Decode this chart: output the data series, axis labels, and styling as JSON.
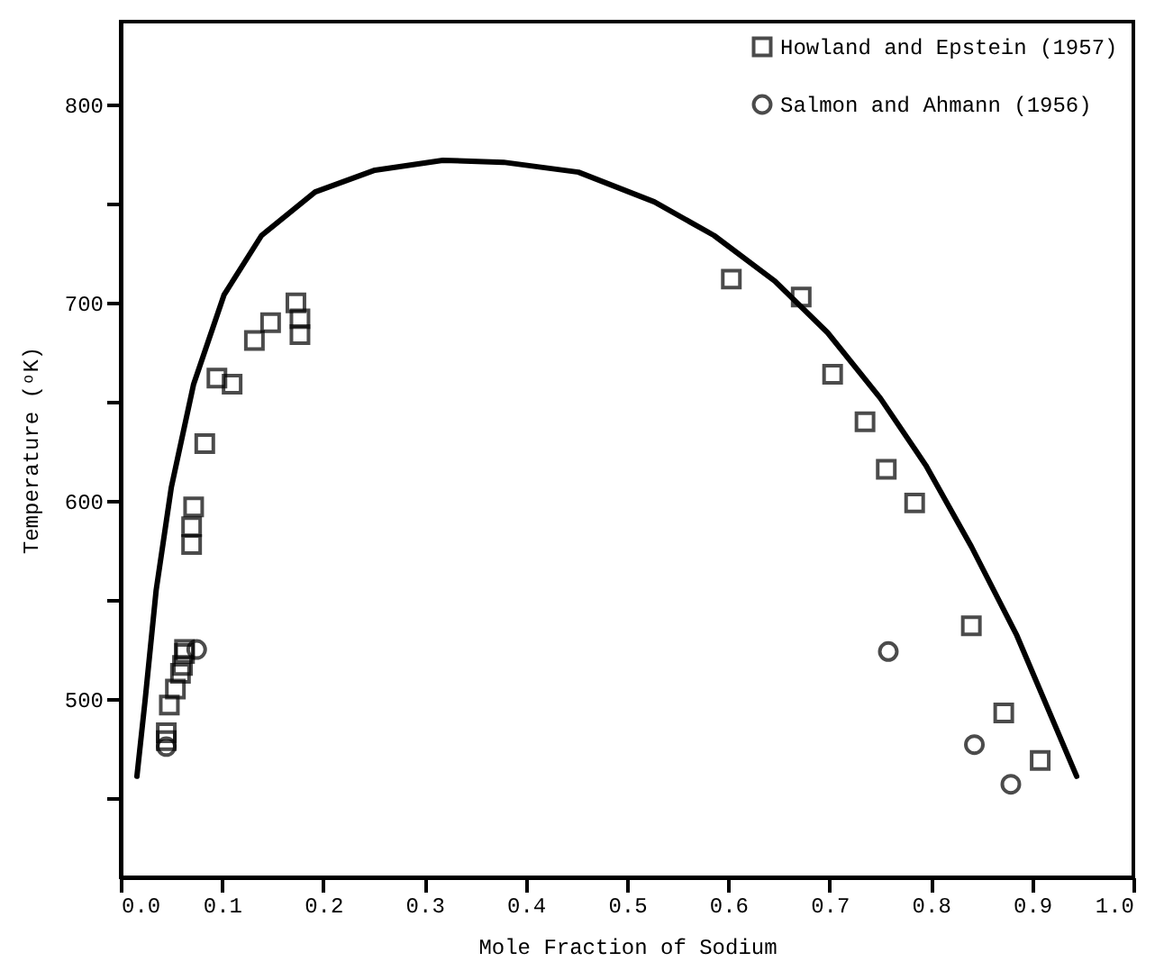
{
  "chart_data": {
    "type": "scatter",
    "xlabel": "Mole Fraction of Sodium",
    "ylabel": "Temperature (ᵒK)",
    "xlim": [
      0,
      1
    ],
    "ylim": [
      410,
      842
    ],
    "xticks": [
      {
        "value": 0,
        "label": "0.0"
      },
      {
        "value": 0.1,
        "label": "0.1"
      },
      {
        "value": 0.2,
        "label": "0.2"
      },
      {
        "value": 0.3,
        "label": "0.3"
      },
      {
        "value": 0.4,
        "label": "0.4"
      },
      {
        "value": 0.5,
        "label": "0.5"
      },
      {
        "value": 0.6,
        "label": "0.6"
      },
      {
        "value": 0.7,
        "label": "0.7"
      },
      {
        "value": 0.8,
        "label": "0.8"
      },
      {
        "value": 0.9,
        "label": "0.9"
      },
      {
        "value": 1,
        "label": "1.0"
      }
    ],
    "yticks": [
      {
        "value": 450,
        "label": null
      },
      500,
      {
        "value": 550,
        "label": null
      },
      600,
      {
        "value": 650,
        "label": null
      },
      700,
      {
        "value": 750,
        "label": null
      },
      800
    ],
    "grid": false,
    "legend": "top right",
    "series": [
      {
        "name": "Howland and Epstein (1957)",
        "color": "#000000",
        "marker": "square",
        "x": [
          0.045,
          0.045,
          0.048,
          0.054,
          0.059,
          0.061,
          0.063,
          0.063,
          0.07,
          0.07,
          0.072,
          0.083,
          0.095,
          0.11,
          0.132,
          0.148,
          0.173,
          0.177,
          0.177,
          0.603,
          0.672,
          0.703,
          0.735,
          0.756,
          0.784,
          0.84,
          0.872,
          0.908
        ],
        "values": [
          483,
          479,
          497,
          505,
          513,
          517,
          523,
          525,
          578,
          587,
          597,
          629,
          662,
          659,
          681,
          690,
          700,
          692,
          684,
          712,
          703,
          664,
          640,
          616,
          599,
          537,
          493,
          469
        ]
      },
      {
        "name": "Salmon and Ahmann (1956)",
        "color": "#000000",
        "marker": "circle",
        "x": [
          0.045,
          0.075,
          0.758,
          0.843,
          0.879
        ],
        "values": [
          476,
          525,
          524,
          477,
          457
        ]
      },
      {
        "type": "line",
        "color": "#000000",
        "marker": "none",
        "line_style": "solid",
        "x": [
          0.016,
          0.024,
          0.035,
          0.05,
          0.072,
          0.102,
          0.139,
          0.192,
          0.251,
          0.318,
          0.378,
          0.452,
          0.527,
          0.586,
          0.646,
          0.698,
          0.75,
          0.795,
          0.84,
          0.885,
          0.944
        ],
        "values": [
          461,
          499,
          555,
          607,
          659,
          704,
          734,
          756,
          767,
          772,
          771,
          766,
          751,
          734,
          711,
          685,
          652,
          618,
          577,
          532,
          461
        ]
      }
    ]
  }
}
